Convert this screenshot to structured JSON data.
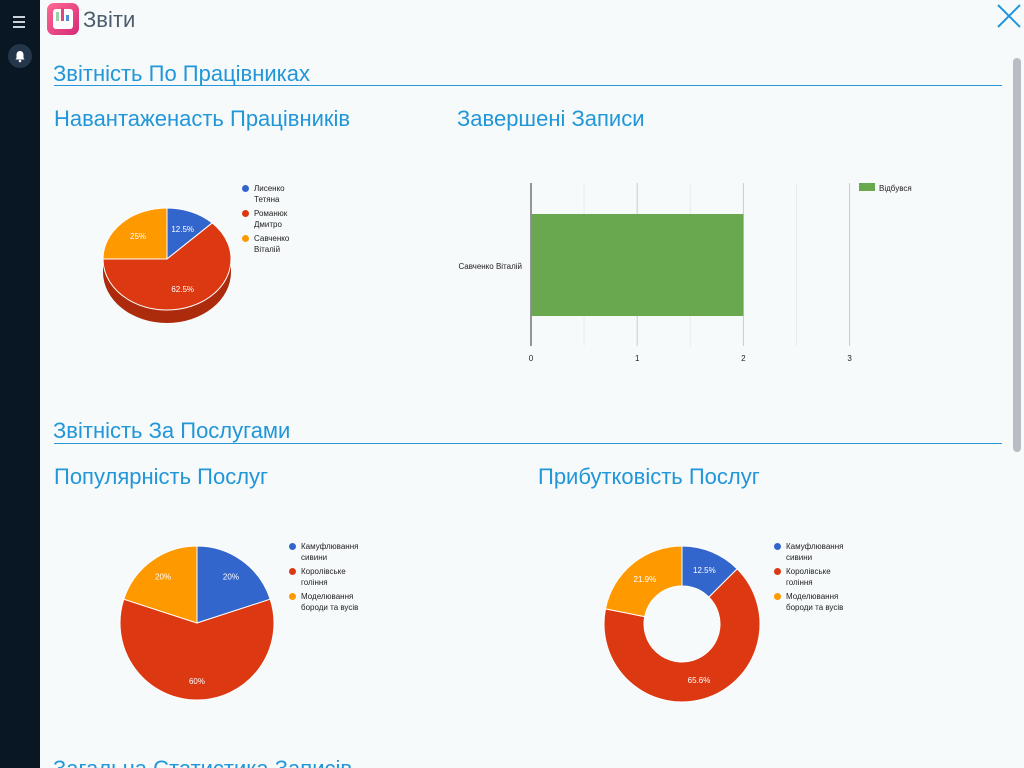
{
  "app": {
    "title": "Звіти"
  },
  "sections": {
    "employees": "Звітність По Працівниках",
    "services": "Звітність За Послугами",
    "general": "Загальна Статистика Записів"
  },
  "colors": {
    "blue": "#3366cc",
    "red": "#dc3912",
    "orange": "#ff9900",
    "green": "#6aa84f",
    "accent": "#2196d8"
  },
  "chart_data": [
    {
      "type": "pie",
      "title": "Навантаженасть Працівників",
      "style": "3d",
      "labels": [
        "Лисенко Тетяна",
        "Романюк Дмитро",
        "Савченко Віталій"
      ],
      "legend_lines": [
        [
          "Лисенко",
          "Тетяна"
        ],
        [
          "Романюк",
          "Дмитро"
        ],
        [
          "Савченко",
          "Віталій"
        ]
      ],
      "values": [
        12.5,
        62.5,
        25
      ],
      "slice_labels": [
        "12.5%",
        "62.5%",
        "25%"
      ],
      "legend_position": "right"
    },
    {
      "type": "bar",
      "orientation": "horizontal",
      "title": "Завершені Записи",
      "categories": [
        "Савченко Віталій"
      ],
      "series": [
        {
          "name": "Відбувся",
          "values": [
            2
          ]
        }
      ],
      "xlim": [
        0,
        3
      ],
      "ticks": [
        "0",
        "1",
        "2",
        "3"
      ],
      "grid": true,
      "legend_position": "top-right"
    },
    {
      "type": "pie",
      "title": "Популярність Послуг",
      "labels": [
        "Камуфлювання сивини",
        "Королівське гоління",
        "Моделювання бороди та вусів"
      ],
      "legend_lines": [
        [
          "Камуфлювання",
          "сивини"
        ],
        [
          "Королівське",
          "гоління"
        ],
        [
          "Моделювання",
          "бороди та вусів"
        ]
      ],
      "values": [
        20,
        60,
        20
      ],
      "slice_labels": [
        "20%",
        "60%",
        "20%"
      ],
      "legend_position": "right"
    },
    {
      "type": "pie",
      "style": "donut",
      "title": "Прибутковість Послуг",
      "labels": [
        "Камуфлювання сивини",
        "Королівське гоління",
        "Моделювання бороди та вусів"
      ],
      "legend_lines": [
        [
          "Камуфлювання",
          "сивини"
        ],
        [
          "Королівське",
          "гоління"
        ],
        [
          "Моделювання",
          "бороди та вусів"
        ]
      ],
      "values": [
        12.5,
        65.6,
        21.9
      ],
      "slice_labels": [
        "12.5%",
        "65.6%",
        "21.9%"
      ],
      "legend_position": "right"
    }
  ]
}
